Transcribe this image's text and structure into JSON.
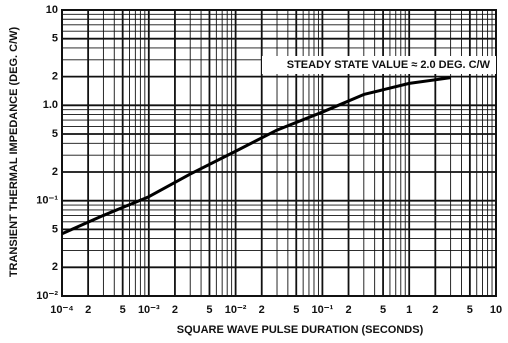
{
  "chart_data": {
    "type": "line",
    "x_label": "SQUARE WAVE PULSE DURATION (SECONDS)",
    "y_label": "TRANSIENT THERMAL IMPEDANCE (DEG. C/W)",
    "annotation": "STEADY STATE VALUE ≈ 2.0 DEG. C/W",
    "xscale": "log",
    "yscale": "log",
    "grid": true,
    "minor_grid": true,
    "xlim": [
      0.0001,
      10
    ],
    "ylim": [
      0.01,
      10
    ],
    "xticks": [
      {
        "value": 0.0001,
        "label": "10⁻⁴"
      },
      {
        "value": 0.0002,
        "label": "2"
      },
      {
        "value": 0.0005,
        "label": "5"
      },
      {
        "value": 0.001,
        "label": "10⁻³"
      },
      {
        "value": 0.002,
        "label": "2"
      },
      {
        "value": 0.005,
        "label": "5"
      },
      {
        "value": 0.01,
        "label": "10⁻²"
      },
      {
        "value": 0.02,
        "label": "2"
      },
      {
        "value": 0.05,
        "label": "5"
      },
      {
        "value": 0.1,
        "label": "10⁻¹"
      },
      {
        "value": 0.2,
        "label": "2"
      },
      {
        "value": 0.5,
        "label": "5"
      },
      1,
      2,
      5,
      10
    ],
    "yticks": [
      {
        "value": 0.01,
        "label": "10⁻²"
      },
      {
        "value": 0.02,
        "label": "2"
      },
      {
        "value": 0.05,
        "label": "5"
      },
      {
        "value": 0.1,
        "label": "10⁻¹"
      },
      {
        "value": 0.2,
        "label": "2"
      },
      {
        "value": 0.5,
        "label": "5"
      },
      {
        "value": 1,
        "label": "1.0"
      },
      2,
      5,
      10
    ],
    "series": [
      {
        "color": "#000000",
        "x": [
          0.0001,
          0.0003,
          0.001,
          0.003,
          0.01,
          0.03,
          0.1,
          0.3,
          1,
          3
        ],
        "values": [
          0.045,
          0.07,
          0.11,
          0.19,
          0.33,
          0.55,
          0.85,
          1.3,
          1.7,
          1.95
        ]
      }
    ]
  }
}
